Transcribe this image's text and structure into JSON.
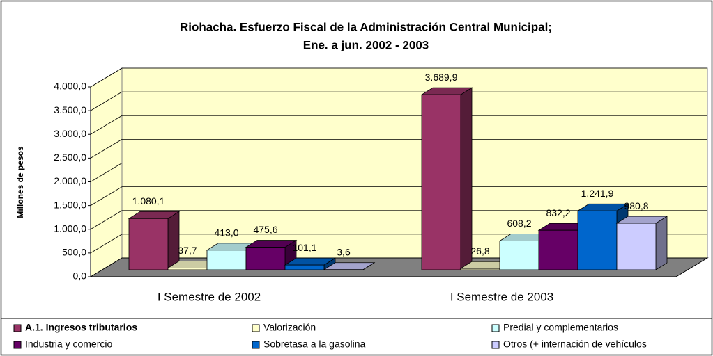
{
  "chart_data": {
    "type": "bar3d",
    "title": "Riohacha. Esfuerzo Fiscal de la Administración Central Municipal;",
    "subtitle": "Ene. a jun.  2002 - 2003",
    "y_label": "Millones de pesos",
    "categories": [
      "I Semestre de 2002",
      "I Semestre de 2003"
    ],
    "series": [
      {
        "name": "A.1. Ingresos tributarios",
        "color": "#993366",
        "values": [
          1080.1,
          3689.9
        ],
        "value_labels": [
          "1.080,1",
          "3.689,9"
        ]
      },
      {
        "name": "Valorización",
        "color": "#ffffcc",
        "values": [
          37.7,
          26.8
        ],
        "value_labels": [
          "37,7",
          "26,8"
        ]
      },
      {
        "name": "Predial y complementarios",
        "color": "#ccffff",
        "values": [
          413.0,
          608.2
        ],
        "value_labels": [
          "413,0",
          "608,2"
        ]
      },
      {
        "name": "Industria y comercio",
        "color": "#660066",
        "values": [
          475.6,
          832.2
        ],
        "value_labels": [
          "475,6",
          "832,2"
        ]
      },
      {
        "name": "Sobretasa a la gasolina",
        "color": "#0066cc",
        "values": [
          101.1,
          1241.9
        ],
        "value_labels": [
          "101,1",
          "1.241,9"
        ]
      },
      {
        "name": "Otros (+ internación de vehículos",
        "color": "#ccccff",
        "values": [
          3.6,
          980.8
        ],
        "value_labels": [
          "3,6",
          "980,8"
        ]
      }
    ],
    "ylim": [
      0,
      4000
    ],
    "yticks": [
      {
        "value": 0,
        "label": "0,0"
      },
      {
        "value": 500,
        "label": "500,0"
      },
      {
        "value": 1000,
        "label": "1.000,0"
      },
      {
        "value": 1500,
        "label": "1.500,0"
      },
      {
        "value": 2000,
        "label": "2.000,0"
      },
      {
        "value": 2500,
        "label": "2.500,0"
      },
      {
        "value": 3000,
        "label": "3.000,0"
      },
      {
        "value": 3500,
        "label": "3.500,0"
      },
      {
        "value": 4000,
        "label": "4.000,0"
      }
    ],
    "grid": true,
    "legend": "bottom"
  }
}
